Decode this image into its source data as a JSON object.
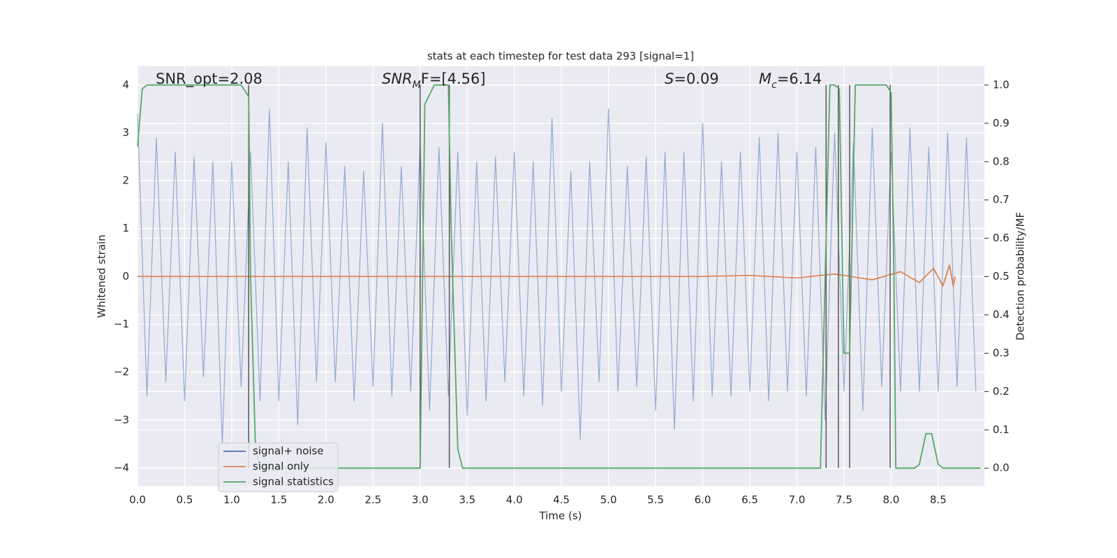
{
  "chart_data": {
    "type": "line",
    "title": "stats at each timestep for test data 293 [signal=1]",
    "x_label": "Time (s)",
    "y_label": "Whitened strain",
    "y2_label": "Detection probability/MF",
    "annotations": [
      {
        "base": "SNR_opt=2.08"
      },
      {
        "base": "SNR",
        "sub": "M",
        "tail": "F=[4.56]"
      },
      {
        "base": "S",
        "tail": "=0.09"
      },
      {
        "base": "M",
        "sub": "c",
        "tail": "=6.14"
      }
    ],
    "xlim": [
      0,
      8.99
    ],
    "ylim": [
      -4.38,
      4.39
    ],
    "y2lim": [
      -0.047,
      1.049
    ],
    "xticks": [
      {
        "value": 0,
        "label": "0.0"
      },
      0.5,
      {
        "value": 1,
        "label": "1.0"
      },
      1.5,
      {
        "value": 2,
        "label": "2.0"
      },
      2.5,
      {
        "value": 3,
        "label": "3.0"
      },
      3.5,
      {
        "value": 4,
        "label": "4.0"
      },
      4.5,
      {
        "value": 5,
        "label": "5.0"
      },
      5.5,
      {
        "value": 6,
        "label": "6.0"
      },
      6.5,
      {
        "value": 7,
        "label": "7.0"
      },
      7.5,
      {
        "value": 8,
        "label": "8.0"
      },
      8.5
    ],
    "yticks": [
      {
        "value": -4,
        "label": "−4"
      },
      {
        "value": -3,
        "label": "−3"
      },
      {
        "value": -2,
        "label": "−2"
      },
      {
        "value": -1,
        "label": "−1"
      },
      0,
      1,
      2,
      3,
      4
    ],
    "y2ticks": [
      {
        "value": 0,
        "label": "0.0"
      },
      0.1,
      0.2,
      0.3,
      0.4,
      0.5,
      0.6,
      0.7,
      0.8,
      0.9,
      {
        "value": 1,
        "label": "1.0"
      }
    ],
    "grid": true,
    "legend": "lower left",
    "vlines": [
      1.18,
      3.0,
      3.31,
      7.31,
      7.44,
      7.56,
      7.99
    ],
    "vline_color": "#555555",
    "series": [
      {
        "name": "signal+ noise",
        "color": "#4c72b0",
        "x": [
          0,
          0.1,
          0.2,
          0.3,
          0.4,
          0.5,
          0.6,
          0.7,
          0.8,
          0.9,
          1,
          1.1,
          1.2,
          1.3,
          1.4,
          1.5,
          1.6,
          1.7,
          1.8,
          1.9,
          2,
          2.1,
          2.2,
          2.3,
          2.4,
          2.5,
          2.6,
          2.7,
          2.8,
          2.9,
          3,
          3.1,
          3.2,
          3.3,
          3.4,
          3.5,
          3.6,
          3.7,
          3.8,
          3.9,
          4,
          4.1,
          4.2,
          4.3,
          4.4,
          4.5,
          4.6,
          4.7,
          4.8,
          4.9,
          5,
          5.1,
          5.2,
          5.3,
          5.4,
          5.5,
          5.6,
          5.7,
          5.8,
          5.9,
          6,
          6.1,
          6.2,
          6.3,
          6.4,
          6.5,
          6.6,
          6.7,
          6.8,
          6.9,
          7,
          7.1,
          7.2,
          7.3,
          7.4,
          7.5,
          7.6,
          7.7,
          7.8,
          7.9,
          8,
          8.1,
          8.2,
          8.3,
          8.4,
          8.5,
          8.6,
          8.7,
          8.8,
          8.9
        ],
        "values": [
          3.4,
          -2.5,
          2.9,
          -2.2,
          2.6,
          -2.6,
          2.5,
          -2.1,
          2.4,
          -3.5,
          2.4,
          -2.3,
          2.6,
          -2.6,
          3.5,
          -2.6,
          2.4,
          -3.1,
          3.1,
          -2.2,
          2.8,
          -2.2,
          2.3,
          -2.6,
          2.2,
          -2.3,
          3.2,
          -2.5,
          2.3,
          -2.4,
          2.8,
          -2.8,
          2.7,
          -2.5,
          2.6,
          -2.9,
          2.4,
          -2.6,
          2.5,
          -2.2,
          2.6,
          -2.5,
          2.4,
          -2.7,
          3.3,
          -2.4,
          2.2,
          -3.4,
          2.4,
          -2.2,
          3.5,
          -2.4,
          2.3,
          -2.3,
          2.5,
          -2.8,
          2.6,
          -3.2,
          2.6,
          -2.6,
          3.2,
          -2.5,
          2.4,
          -2.5,
          2.6,
          -2.4,
          2.9,
          -2.6,
          3.0,
          -2.4,
          2.6,
          -2.5,
          2.7,
          -3.0,
          3.0,
          -2.4,
          2.8,
          -2.8,
          3.1,
          -2.3,
          2.6,
          -2.4,
          3.1,
          -2.4,
          2.7,
          -2.4,
          3.0,
          -2.3,
          2.9,
          -2.4
        ]
      },
      {
        "name": "signal only",
        "color": "#dd8452",
        "x": [
          0,
          6.0,
          6.5,
          7.0,
          7.4,
          7.8,
          8.1,
          8.3,
          8.45,
          8.55,
          8.62,
          8.66,
          8.68
        ],
        "values": [
          0,
          0,
          0.02,
          -0.03,
          0.05,
          -0.07,
          0.1,
          -0.13,
          0.17,
          -0.2,
          0.24,
          -0.2,
          0
        ]
      },
      {
        "name": "signal statistics",
        "color": "#55a868",
        "axis": "y2",
        "x": [
          0,
          0.05,
          0.1,
          1.1,
          1.18,
          1.2,
          1.25,
          1.3,
          3.0,
          3.05,
          3.15,
          3.3,
          3.33,
          3.4,
          3.45,
          7.25,
          7.35,
          7.4,
          7.45,
          7.5,
          7.56,
          7.62,
          7.95,
          8.0,
          8.03,
          8.05,
          8.25,
          8.3,
          8.37,
          8.43,
          8.5,
          8.55,
          8.95
        ],
        "values": [
          0.84,
          0.99,
          1.0,
          1.0,
          0.97,
          0.5,
          0.07,
          0,
          0,
          0.95,
          1.0,
          1.0,
          0.62,
          0.05,
          0,
          0,
          1.0,
          1.0,
          0.99,
          0.3,
          0.3,
          1.0,
          1.0,
          0.98,
          0.5,
          0,
          0,
          0.01,
          0.09,
          0.09,
          0.01,
          0,
          0
        ]
      }
    ]
  }
}
